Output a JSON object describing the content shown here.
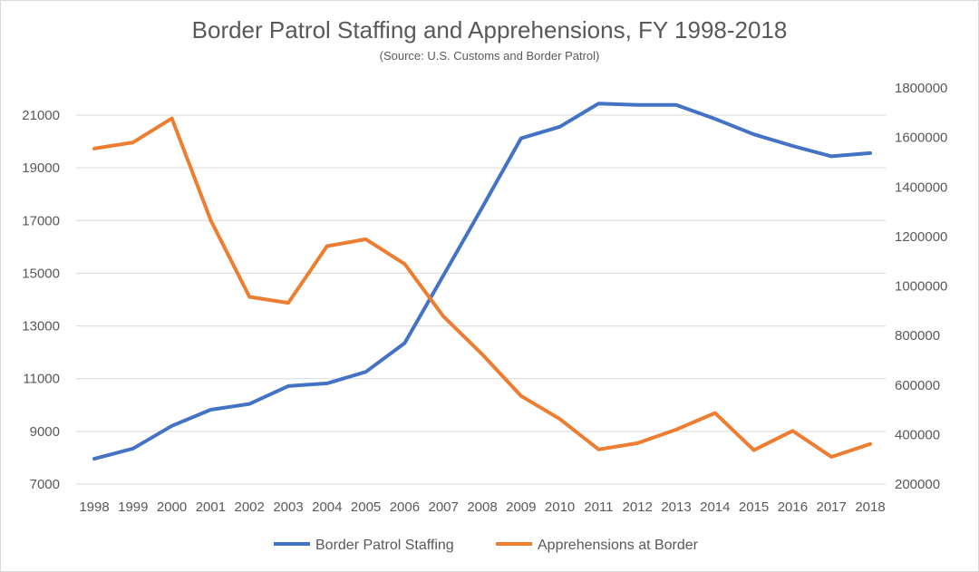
{
  "chart_data": {
    "type": "line",
    "title": "Border Patrol Staffing and Apprehensions, FY 1998-2018",
    "subtitle": "(Source: U.S. Customs and Border Patrol)",
    "categories": [
      "1998",
      "1999",
      "2000",
      "2001",
      "2002",
      "2003",
      "2004",
      "2005",
      "2006",
      "2007",
      "2008",
      "2009",
      "2010",
      "2011",
      "2012",
      "2013",
      "2014",
      "2015",
      "2016",
      "2017",
      "2018"
    ],
    "y_left": {
      "ticks": [
        7000,
        9000,
        11000,
        13000,
        15000,
        17000,
        19000,
        21000
      ],
      "tick_labels": [
        "7000",
        "9000",
        "11000",
        "13000",
        "15000",
        "17000",
        "19000",
        "21000"
      ],
      "range": [
        7000,
        21000
      ]
    },
    "y_right": {
      "ticks": [
        200000,
        400000,
        600000,
        800000,
        1000000,
        1200000,
        1400000,
        1600000,
        1800000
      ],
      "tick_labels": [
        "200000",
        "400000",
        "600000",
        "800000",
        "1000000",
        "1200000",
        "1400000",
        "1600000",
        "1800000"
      ],
      "range": [
        200000,
        1800000
      ]
    },
    "grid": true,
    "legend_position": "bottom",
    "series": [
      {
        "name": "Border Patrol Staffing",
        "axis": "left",
        "color": "#4472C4",
        "values": [
          7960,
          8350,
          9210,
          9820,
          10040,
          10720,
          10820,
          11260,
          12350,
          14920,
          17500,
          20120,
          20560,
          21440,
          21390,
          21390,
          20860,
          20270,
          19830,
          19440,
          19560
        ]
      },
      {
        "name": "Apprehensions at Border",
        "axis": "right",
        "color": "#ED7D31",
        "values": [
          1555000,
          1580000,
          1677000,
          1266000,
          956000,
          932000,
          1161000,
          1189000,
          1089000,
          877000,
          724000,
          556000,
          463000,
          340000,
          365000,
          420000,
          487000,
          337000,
          415000,
          310000,
          362000
        ]
      }
    ]
  }
}
